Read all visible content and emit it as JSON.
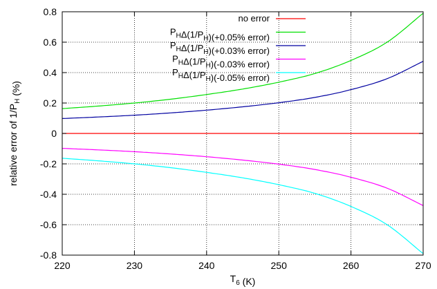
{
  "chart_data": {
    "type": "line",
    "title": "",
    "xlabel": {
      "main": "T",
      "sub": "6",
      "unit": " (K)"
    },
    "ylabel": {
      "main": "relative error of 1/P",
      "sub": "H",
      "unit": " (%)"
    },
    "xlim": [
      220,
      270
    ],
    "ylim": [
      -0.8,
      0.8
    ],
    "xticks": [
      220,
      230,
      240,
      250,
      260,
      270
    ],
    "yticks": [
      -0.8,
      -0.6,
      -0.4,
      -0.2,
      0,
      0.2,
      0.4,
      0.6,
      0.8
    ],
    "xtick_labels": [
      "220",
      "230",
      "240",
      "250",
      "260",
      "270"
    ],
    "ytick_labels": [
      "-0.8",
      "-0.6",
      "-0.4",
      "-0.2",
      "0",
      "0.2",
      "0.4",
      "0.6",
      "0.8"
    ],
    "grid": true,
    "grid_style": "dotted",
    "legend_position": "top-right",
    "x": [
      220,
      225,
      230,
      235,
      240,
      245,
      250,
      255,
      260,
      265,
      270
    ],
    "series": [
      {
        "name": "no error",
        "legend": [
          {
            "t": "no error"
          }
        ],
        "color": "#ff0000",
        "values": [
          0,
          0,
          0,
          0,
          0,
          0,
          0,
          0,
          0,
          0,
          0
        ]
      },
      {
        "name": "PHΔ(1/PH)(+0.05% error)",
        "legend": [
          {
            "t": "P"
          },
          {
            "t": "H",
            "sub": true
          },
          {
            "t": "Δ(1/P"
          },
          {
            "t": "H",
            "sub": true
          },
          {
            "t": ")(+0.05% error)"
          }
        ],
        "color": "#00e000",
        "values": [
          0.163,
          0.18,
          0.2,
          0.225,
          0.256,
          0.292,
          0.337,
          0.394,
          0.48,
          0.6,
          0.79
        ]
      },
      {
        "name": "PHΔ(1/PH)(+0.03% error)",
        "legend": [
          {
            "t": "P"
          },
          {
            "t": "H",
            "sub": true
          },
          {
            "t": "Δ(1/P"
          },
          {
            "t": "H",
            "sub": true
          },
          {
            "t": ")(+0.03% error)"
          }
        ],
        "color": "#0000a0",
        "values": [
          0.098,
          0.108,
          0.12,
          0.135,
          0.153,
          0.175,
          0.202,
          0.237,
          0.288,
          0.36,
          0.474
        ]
      },
      {
        "name": "PHΔ(1/PH)(-0.03% error)",
        "legend": [
          {
            "t": "P"
          },
          {
            "t": "H",
            "sub": true
          },
          {
            "t": "Δ(1/P"
          },
          {
            "t": "H",
            "sub": true
          },
          {
            "t": ")(-0.03% error)"
          }
        ],
        "color": "#ff00ff",
        "values": [
          -0.098,
          -0.108,
          -0.12,
          -0.135,
          -0.153,
          -0.175,
          -0.202,
          -0.237,
          -0.288,
          -0.36,
          -0.474
        ]
      },
      {
        "name": "PHΔ(1/PH)(-0.05% error)",
        "legend": [
          {
            "t": "P"
          },
          {
            "t": "H",
            "sub": true
          },
          {
            "t": "Δ(1/P"
          },
          {
            "t": "H",
            "sub": true
          },
          {
            "t": ")(-0.05% error)"
          }
        ],
        "color": "#00ffff",
        "values": [
          -0.163,
          -0.18,
          -0.2,
          -0.225,
          -0.256,
          -0.292,
          -0.337,
          -0.394,
          -0.48,
          -0.6,
          -0.79
        ]
      }
    ]
  }
}
